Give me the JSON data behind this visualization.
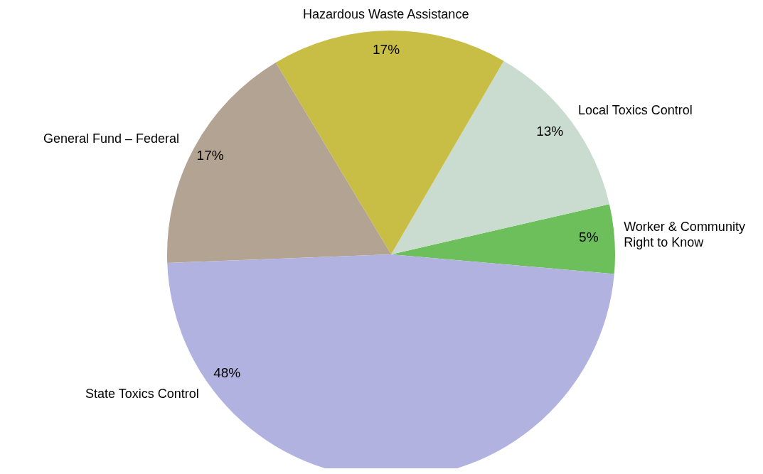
{
  "chart_data": {
    "type": "pie",
    "categories": [
      "Worker & Community Right to Know",
      "Local Toxics Control",
      "Hazardous Waste Assistance",
      "General Fund – Federal",
      "State Toxics Control"
    ],
    "values": [
      5,
      13,
      17,
      17,
      48
    ],
    "colors": [
      "#6cbf5a",
      "#c9dccf",
      "#c8bd45",
      "#b3a392",
      "#b2b2e0"
    ],
    "value_labels": [
      "5%",
      "13%",
      "17%",
      "17%",
      "48%"
    ]
  }
}
